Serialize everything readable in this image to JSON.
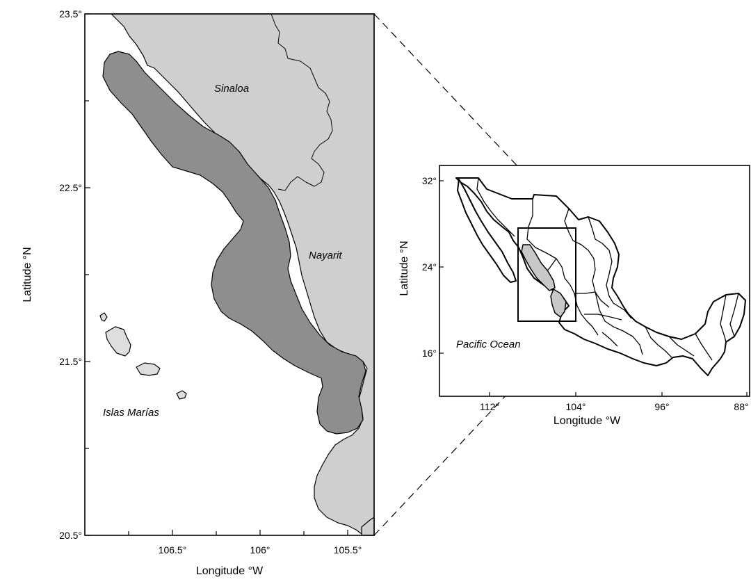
{
  "main_map": {
    "y_axis_label": "Latitude °N",
    "x_axis_label": "Longitude °W",
    "y_ticks": [
      "23.5°",
      "22.5°",
      "21.5°",
      "20.5°"
    ],
    "x_ticks": [
      "106.5°",
      "106°",
      "105.5°"
    ],
    "region_labels": {
      "sinaloa": "Sinaloa",
      "nayarit": "Nayarit",
      "islas_marias": "Islas Marías"
    }
  },
  "inset_map": {
    "y_axis_label": "Latitude °N",
    "x_axis_label": "Longitude °W",
    "y_ticks": [
      "32°",
      "24°",
      "16°"
    ],
    "x_ticks": [
      "112°",
      "104°",
      "96°",
      "88°"
    ],
    "ocean_label": "Pacific Ocean"
  },
  "colors": {
    "land": "#cfcfcf",
    "study_area": "#8e8e8e",
    "highlighted_states": "#c8c8c8"
  }
}
